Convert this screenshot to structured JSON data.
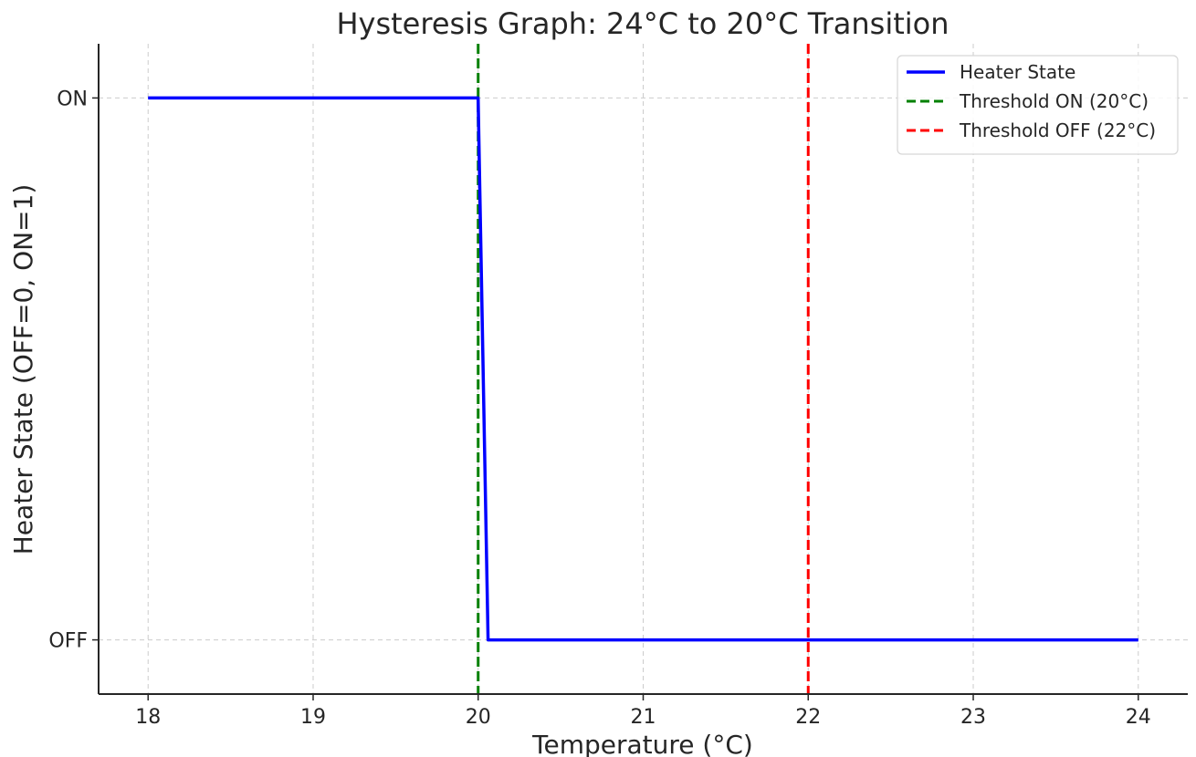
{
  "chart_data": {
    "type": "line",
    "title": "Hysteresis Graph: 24°C to 20°C Transition",
    "xlabel": "Temperature (°C)",
    "ylabel": "Heater State (OFF=0, ON=1)",
    "xlim": [
      17.7,
      24.3
    ],
    "ylim": [
      -0.1,
      1.1
    ],
    "x_ticks": [
      18,
      19,
      20,
      21,
      22,
      23,
      24
    ],
    "x_tick_labels": [
      "18",
      "19",
      "20",
      "21",
      "22",
      "23",
      "24"
    ],
    "y_ticks": [
      0,
      1
    ],
    "y_tick_labels": [
      "OFF",
      "ON"
    ],
    "grid": true,
    "legend_position": "top-right",
    "series": [
      {
        "name": "Heater State",
        "color": "#0000ff",
        "style": "solid",
        "points": [
          {
            "x": 18,
            "y": 1
          },
          {
            "x": 20,
            "y": 1
          },
          {
            "x": 20.06,
            "y": 0
          },
          {
            "x": 24,
            "y": 0
          }
        ]
      }
    ],
    "vlines": [
      {
        "name": "Threshold ON (20°C)",
        "x": 20,
        "color": "#008000",
        "style": "dashed"
      },
      {
        "name": "Threshold OFF (22°C)",
        "x": 22,
        "color": "#ff0000",
        "style": "dashed"
      }
    ]
  }
}
